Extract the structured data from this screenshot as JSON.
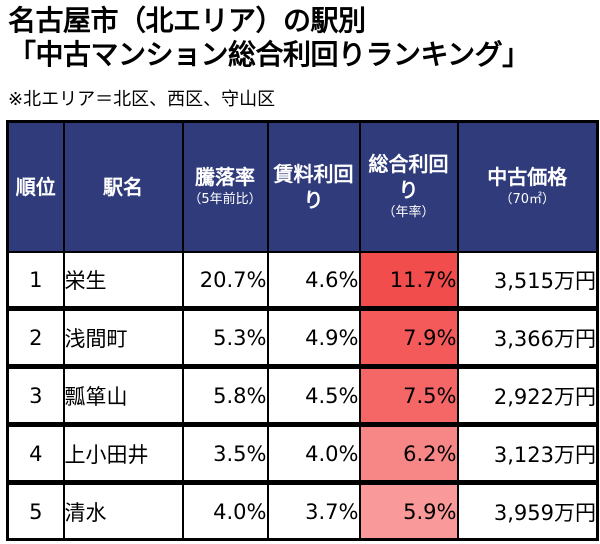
{
  "title": {
    "line1": "名古屋市（北エリア）の駅別",
    "line2": "「中古マンション総合利回りランキング」"
  },
  "note": "※北エリア＝北区、西区、守山区",
  "columns": {
    "rank": "順位",
    "station": "駅名",
    "drop_main": "騰落率",
    "drop_sub": "（5年前比）",
    "rent": "賃料利回り",
    "total_main": "総合利回り",
    "total_sub": "（年率）",
    "price_main": "中古価格",
    "price_sub": "（70㎡）"
  },
  "colors": {
    "header_bg": "#2f3b7a",
    "rank1": "#f24d4d",
    "rank2": "#f45a5a",
    "rank3": "#f56767",
    "rank4": "#f78686",
    "rank5": "#f99999"
  },
  "rows": [
    {
      "rank": "1",
      "station": "栄生",
      "drop": "20.7%",
      "rent": "4.6%",
      "total": "11.7%",
      "price": "3,515万円",
      "total_color": "#f24d4d"
    },
    {
      "rank": "2",
      "station": "浅間町",
      "drop": "5.3%",
      "rent": "4.9%",
      "total": "7.9%",
      "price": "3,366万円",
      "total_color": "#f45a5a"
    },
    {
      "rank": "3",
      "station": "瓢箪山",
      "drop": "5.8%",
      "rent": "4.5%",
      "total": "7.5%",
      "price": "2,922万円",
      "total_color": "#f56767"
    },
    {
      "rank": "4",
      "station": "上小田井",
      "drop": "3.5%",
      "rent": "4.0%",
      "total": "6.2%",
      "price": "3,123万円",
      "total_color": "#f78686"
    },
    {
      "rank": "5",
      "station": "清水",
      "drop": "4.0%",
      "rent": "3.7%",
      "total": "5.9%",
      "price": "3,959万円",
      "total_color": "#f99999"
    }
  ]
}
